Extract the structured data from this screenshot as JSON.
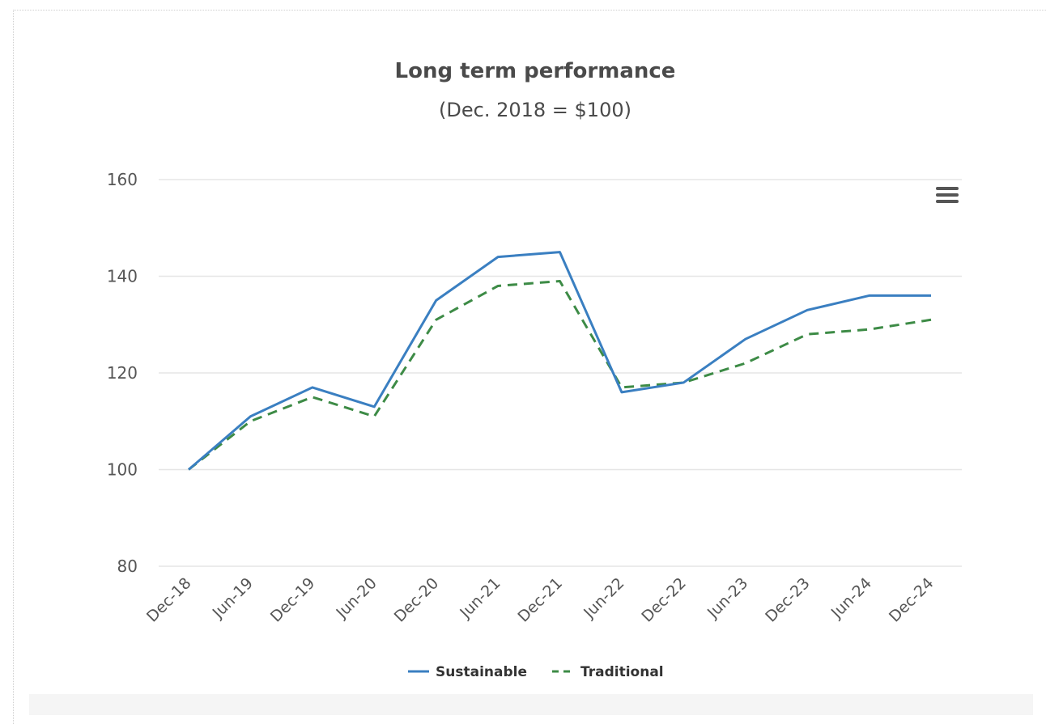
{
  "chart_data": {
    "type": "line",
    "title": "Long term performance",
    "subtitle": "(Dec. 2018 = $100)",
    "x": [
      "Dec-18",
      "Jun-19",
      "Dec-19",
      "Jun-20",
      "Dec-20",
      "Jun-21",
      "Dec-21",
      "Jun-22",
      "Dec-22",
      "Jun-23",
      "Dec-23",
      "Jun-24",
      "Dec-24"
    ],
    "ylim": [
      80,
      160
    ],
    "yticks": [
      80,
      100,
      120,
      140,
      160
    ],
    "grid": true,
    "legend_position": "bottom-center",
    "series": [
      {
        "name": "Sustainable",
        "color": "#3a7fc1",
        "style": "solid",
        "values": [
          100,
          111,
          117,
          113,
          135,
          144,
          145,
          116,
          118,
          127,
          133,
          136,
          136
        ]
      },
      {
        "name": "Traditional",
        "color": "#3d8b46",
        "style": "dashed",
        "values": [
          100,
          110,
          115,
          111,
          131,
          138,
          139,
          117,
          118,
          122,
          128,
          129,
          131
        ]
      }
    ]
  },
  "menu": {
    "icon": "hamburger-menu-icon"
  }
}
